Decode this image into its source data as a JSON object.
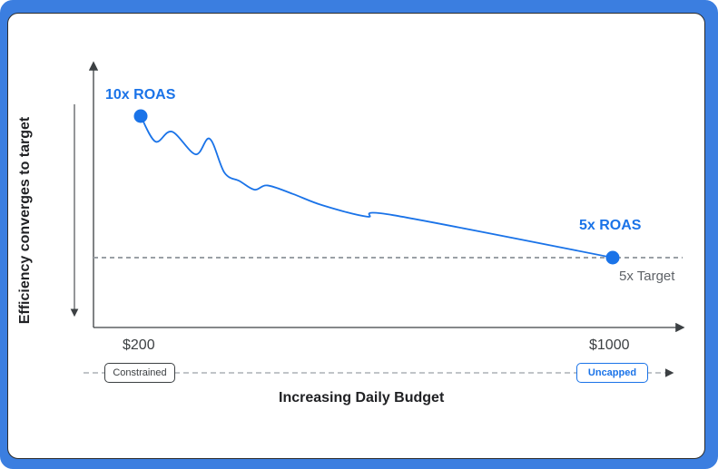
{
  "colors": {
    "accent": "#1a73e8",
    "frame": "#3b7ee0",
    "axis": "#3c4043",
    "target_line": "#9aa0a6",
    "muted_text": "#5f6368"
  },
  "diagram": {
    "y_axis_label": "Efficiency converges to target",
    "x_axis_label": "Increasing Daily Budget",
    "start_annotation": "10x ROAS",
    "end_annotation": "5x ROAS",
    "target_label": "5x Target",
    "x_tick_min": "$200",
    "x_tick_max": "$1000",
    "budget_state_min": "Constrained",
    "budget_state_max": "Uncapped"
  },
  "chart_data": {
    "type": "line",
    "x_label": "Increasing Daily Budget",
    "y_label": "Efficiency converges to target",
    "x_tick_labels": [
      "$200",
      "$1000"
    ],
    "xlim": [
      200,
      1000
    ],
    "ylim": [
      4,
      12
    ],
    "target": {
      "value": 5,
      "label": "5x Target"
    },
    "series": [
      {
        "values": [
          [
            200,
            10.0
          ],
          [
            225,
            9.1
          ],
          [
            253,
            9.45
          ],
          [
            293,
            8.65
          ],
          [
            317,
            9.2
          ],
          [
            342,
            8.0
          ],
          [
            368,
            7.7
          ],
          [
            393,
            7.4
          ],
          [
            415,
            7.55
          ],
          [
            458,
            7.25
          ],
          [
            508,
            6.85
          ],
          [
            583,
            6.45
          ],
          [
            628,
            6.5
          ],
          [
            1000,
            5.0
          ]
        ]
      }
    ],
    "grid": false
  }
}
